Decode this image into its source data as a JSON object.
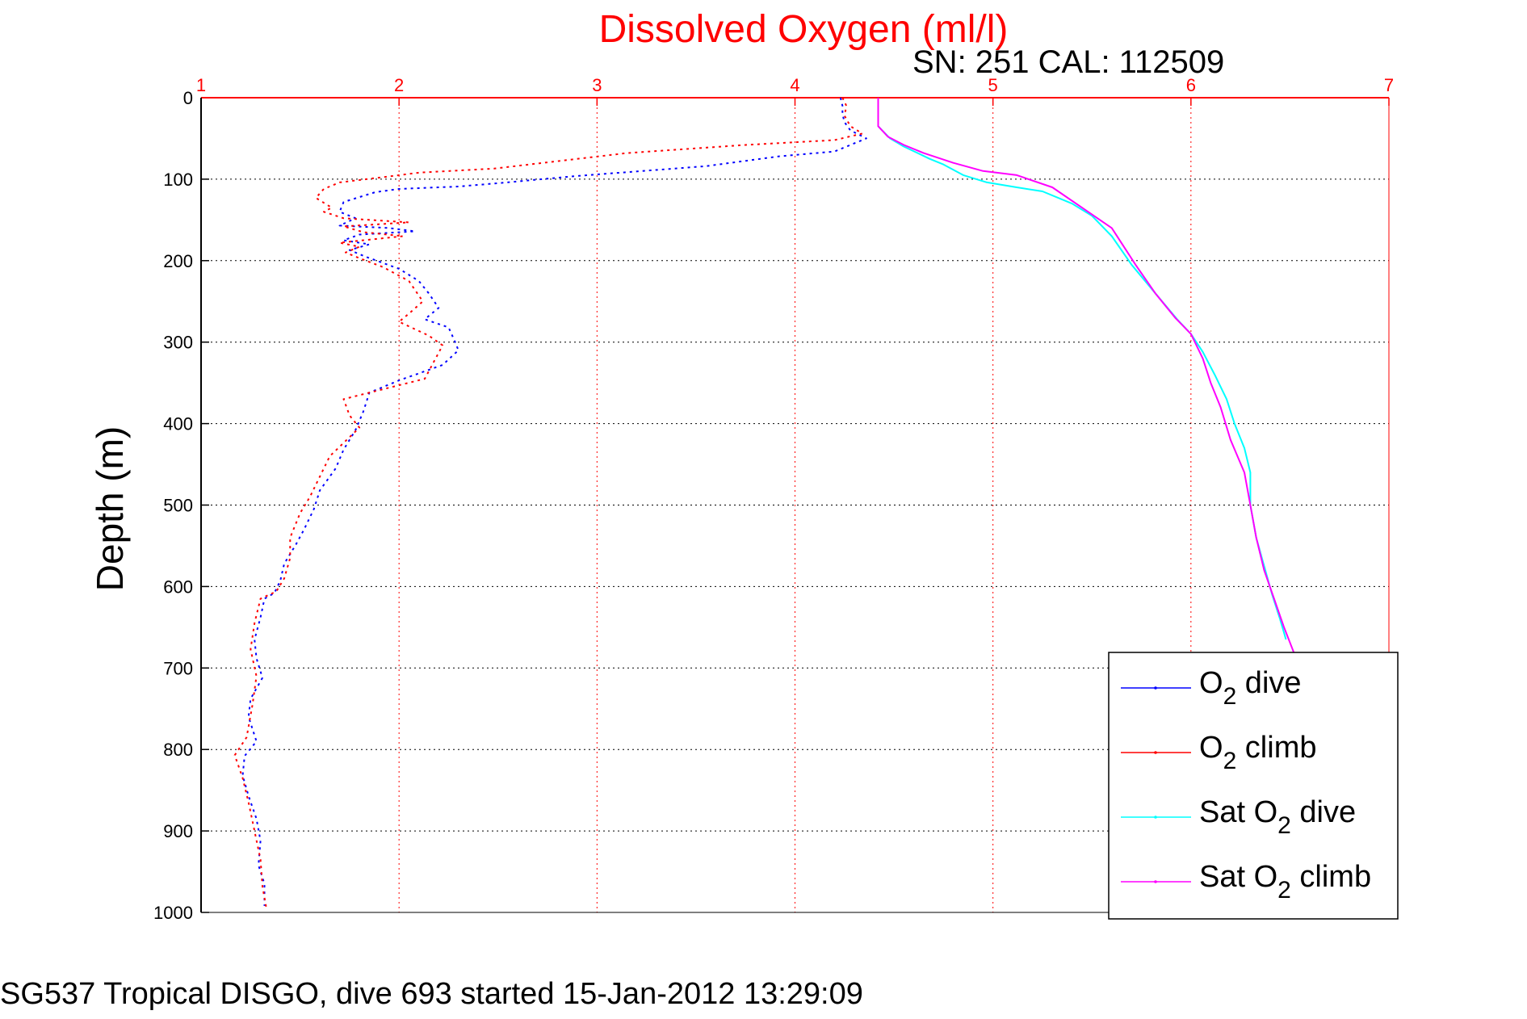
{
  "chart_data": {
    "type": "line",
    "title": "Dissolved Oxygen (ml/l)",
    "subtitle": "SN: 251  CAL: 112509",
    "xlabel": "",
    "ylabel": "Depth (m)",
    "footer": "SG537 Tropical DISGO, dive 693 started 15-Jan-2012 13:29:09",
    "xlim": [
      1,
      7
    ],
    "ylim": [
      0,
      1000
    ],
    "y_reversed": true,
    "x_ticks": [
      "1",
      "2",
      "3",
      "4",
      "5",
      "6",
      "7"
    ],
    "y_ticks": [
      "0",
      "100",
      "200",
      "300",
      "400",
      "500",
      "600",
      "700",
      "800",
      "900",
      "1000"
    ],
    "grid": true,
    "x_axis_position": "top",
    "legend_position": "bottom-right",
    "series": [
      {
        "name": "O2 dive",
        "legend": {
          "main": "O",
          "sub": "2",
          "rest": " dive"
        },
        "color": "#0000ff",
        "style": "dotted-line",
        "points": [
          [
            4.23,
            0
          ],
          [
            4.24,
            10
          ],
          [
            4.24,
            20
          ],
          [
            4.25,
            30
          ],
          [
            4.28,
            40
          ],
          [
            4.36,
            50
          ],
          [
            4.2,
            66
          ],
          [
            3.92,
            72
          ],
          [
            3.55,
            84
          ],
          [
            2.9,
            96
          ],
          [
            2.5,
            105
          ],
          [
            2.3,
            109
          ],
          [
            2.0,
            112
          ],
          [
            1.88,
            116
          ],
          [
            1.8,
            122
          ],
          [
            1.72,
            128
          ],
          [
            1.7,
            140
          ],
          [
            1.78,
            148
          ],
          [
            1.7,
            157
          ],
          [
            1.95,
            160
          ],
          [
            2.08,
            164
          ],
          [
            1.8,
            168
          ],
          [
            1.72,
            175
          ],
          [
            1.85,
            180
          ],
          [
            1.75,
            187
          ],
          [
            1.83,
            195
          ],
          [
            2.0,
            210
          ],
          [
            2.1,
            225
          ],
          [
            2.15,
            240
          ],
          [
            2.2,
            258
          ],
          [
            2.13,
            272
          ],
          [
            2.25,
            282
          ],
          [
            2.28,
            298
          ],
          [
            2.3,
            310
          ],
          [
            2.22,
            328
          ],
          [
            2.0,
            347
          ],
          [
            1.85,
            362
          ],
          [
            1.82,
            385
          ],
          [
            1.78,
            408
          ],
          [
            1.72,
            432
          ],
          [
            1.68,
            455
          ],
          [
            1.6,
            482
          ],
          [
            1.57,
            505
          ],
          [
            1.52,
            530
          ],
          [
            1.48,
            548
          ],
          [
            1.42,
            572
          ],
          [
            1.4,
            593
          ],
          [
            1.37,
            608
          ],
          [
            1.32,
            615
          ],
          [
            1.3,
            638
          ],
          [
            1.27,
            665
          ],
          [
            1.28,
            688
          ],
          [
            1.31,
            712
          ],
          [
            1.25,
            738
          ],
          [
            1.24,
            760
          ],
          [
            1.28,
            790
          ],
          [
            1.22,
            808
          ],
          [
            1.21,
            832
          ],
          [
            1.24,
            857
          ],
          [
            1.28,
            885
          ],
          [
            1.3,
            912
          ],
          [
            1.29,
            942
          ],
          [
            1.32,
            965
          ],
          [
            1.32,
            992
          ]
        ]
      },
      {
        "name": "O2 climb",
        "legend": {
          "main": "O",
          "sub": "2",
          "rest": " climb"
        },
        "color": "#ff0000",
        "style": "dotted-line",
        "points": [
          [
            4.24,
            0
          ],
          [
            4.26,
            10
          ],
          [
            4.25,
            22
          ],
          [
            4.28,
            35
          ],
          [
            4.34,
            44
          ],
          [
            4.2,
            52
          ],
          [
            3.75,
            58
          ],
          [
            3.15,
            68
          ],
          [
            2.48,
            87
          ],
          [
            2.1,
            92
          ],
          [
            1.97,
            96
          ],
          [
            1.7,
            104
          ],
          [
            1.62,
            112
          ],
          [
            1.58,
            123
          ],
          [
            1.66,
            135
          ],
          [
            1.62,
            140
          ],
          [
            1.72,
            148
          ],
          [
            2.05,
            153
          ],
          [
            1.72,
            158
          ],
          [
            1.82,
            165
          ],
          [
            2.02,
            170
          ],
          [
            1.7,
            178
          ],
          [
            1.8,
            183
          ],
          [
            1.73,
            190
          ],
          [
            1.8,
            197
          ],
          [
            1.92,
            208
          ],
          [
            2.05,
            225
          ],
          [
            2.12,
            250
          ],
          [
            2.05,
            265
          ],
          [
            2.0,
            275
          ],
          [
            2.15,
            292
          ],
          [
            2.22,
            304
          ],
          [
            2.13,
            345
          ],
          [
            1.72,
            370
          ],
          [
            1.75,
            390
          ],
          [
            1.8,
            405
          ],
          [
            1.65,
            440
          ],
          [
            1.6,
            465
          ],
          [
            1.55,
            490
          ],
          [
            1.5,
            510
          ],
          [
            1.45,
            540
          ],
          [
            1.45,
            565
          ],
          [
            1.42,
            590
          ],
          [
            1.38,
            606
          ],
          [
            1.3,
            615
          ],
          [
            1.27,
            645
          ],
          [
            1.25,
            677
          ],
          [
            1.28,
            710
          ],
          [
            1.26,
            745
          ],
          [
            1.23,
            785
          ],
          [
            1.17,
            807
          ],
          [
            1.21,
            835
          ],
          [
            1.24,
            865
          ],
          [
            1.27,
            900
          ],
          [
            1.3,
            935
          ],
          [
            1.31,
            968
          ],
          [
            1.33,
            995
          ]
        ]
      },
      {
        "name": "Sat O2 dive",
        "legend": {
          "main": "Sat O",
          "sub": "2",
          "rest": " dive"
        },
        "color": "#00ffff",
        "style": "line",
        "points": [
          [
            4.42,
            0
          ],
          [
            4.42,
            35
          ],
          [
            4.48,
            50
          ],
          [
            4.55,
            60
          ],
          [
            4.62,
            68
          ],
          [
            4.68,
            75
          ],
          [
            4.75,
            82
          ],
          [
            4.85,
            95
          ],
          [
            4.97,
            104
          ],
          [
            5.12,
            110
          ],
          [
            5.25,
            115
          ],
          [
            5.4,
            130
          ],
          [
            5.5,
            145
          ],
          [
            5.6,
            170
          ],
          [
            5.7,
            205
          ],
          [
            5.82,
            240
          ],
          [
            5.93,
            272
          ],
          [
            6.0,
            290
          ],
          [
            6.06,
            312
          ],
          [
            6.12,
            340
          ],
          [
            6.18,
            370
          ],
          [
            6.22,
            400
          ],
          [
            6.27,
            430
          ],
          [
            6.3,
            460
          ],
          [
            6.3,
            500
          ],
          [
            6.33,
            540
          ],
          [
            6.37,
            575
          ],
          [
            6.41,
            610
          ],
          [
            6.45,
            640
          ],
          [
            6.48,
            665
          ]
        ]
      },
      {
        "name": "Sat O2 climb",
        "legend": {
          "main": "Sat O",
          "sub": "2",
          "rest": " climb"
        },
        "color": "#ff00ff",
        "style": "line",
        "points": [
          [
            4.42,
            0
          ],
          [
            4.42,
            35
          ],
          [
            4.47,
            48
          ],
          [
            4.55,
            58
          ],
          [
            4.65,
            68
          ],
          [
            4.8,
            80
          ],
          [
            4.95,
            90
          ],
          [
            5.12,
            95
          ],
          [
            5.3,
            110
          ],
          [
            5.45,
            135
          ],
          [
            5.6,
            160
          ],
          [
            5.72,
            205
          ],
          [
            5.82,
            240
          ],
          [
            5.92,
            270
          ],
          [
            6.0,
            290
          ],
          [
            6.06,
            320
          ],
          [
            6.1,
            350
          ],
          [
            6.15,
            380
          ],
          [
            6.2,
            420
          ],
          [
            6.27,
            460
          ],
          [
            6.3,
            500
          ],
          [
            6.33,
            540
          ],
          [
            6.37,
            580
          ],
          [
            6.42,
            615
          ],
          [
            6.47,
            650
          ],
          [
            6.55,
            700
          ],
          [
            6.62,
            760
          ],
          [
            6.7,
            820
          ],
          [
            6.77,
            880
          ],
          [
            6.83,
            940
          ],
          [
            6.85,
            995
          ]
        ]
      }
    ]
  }
}
